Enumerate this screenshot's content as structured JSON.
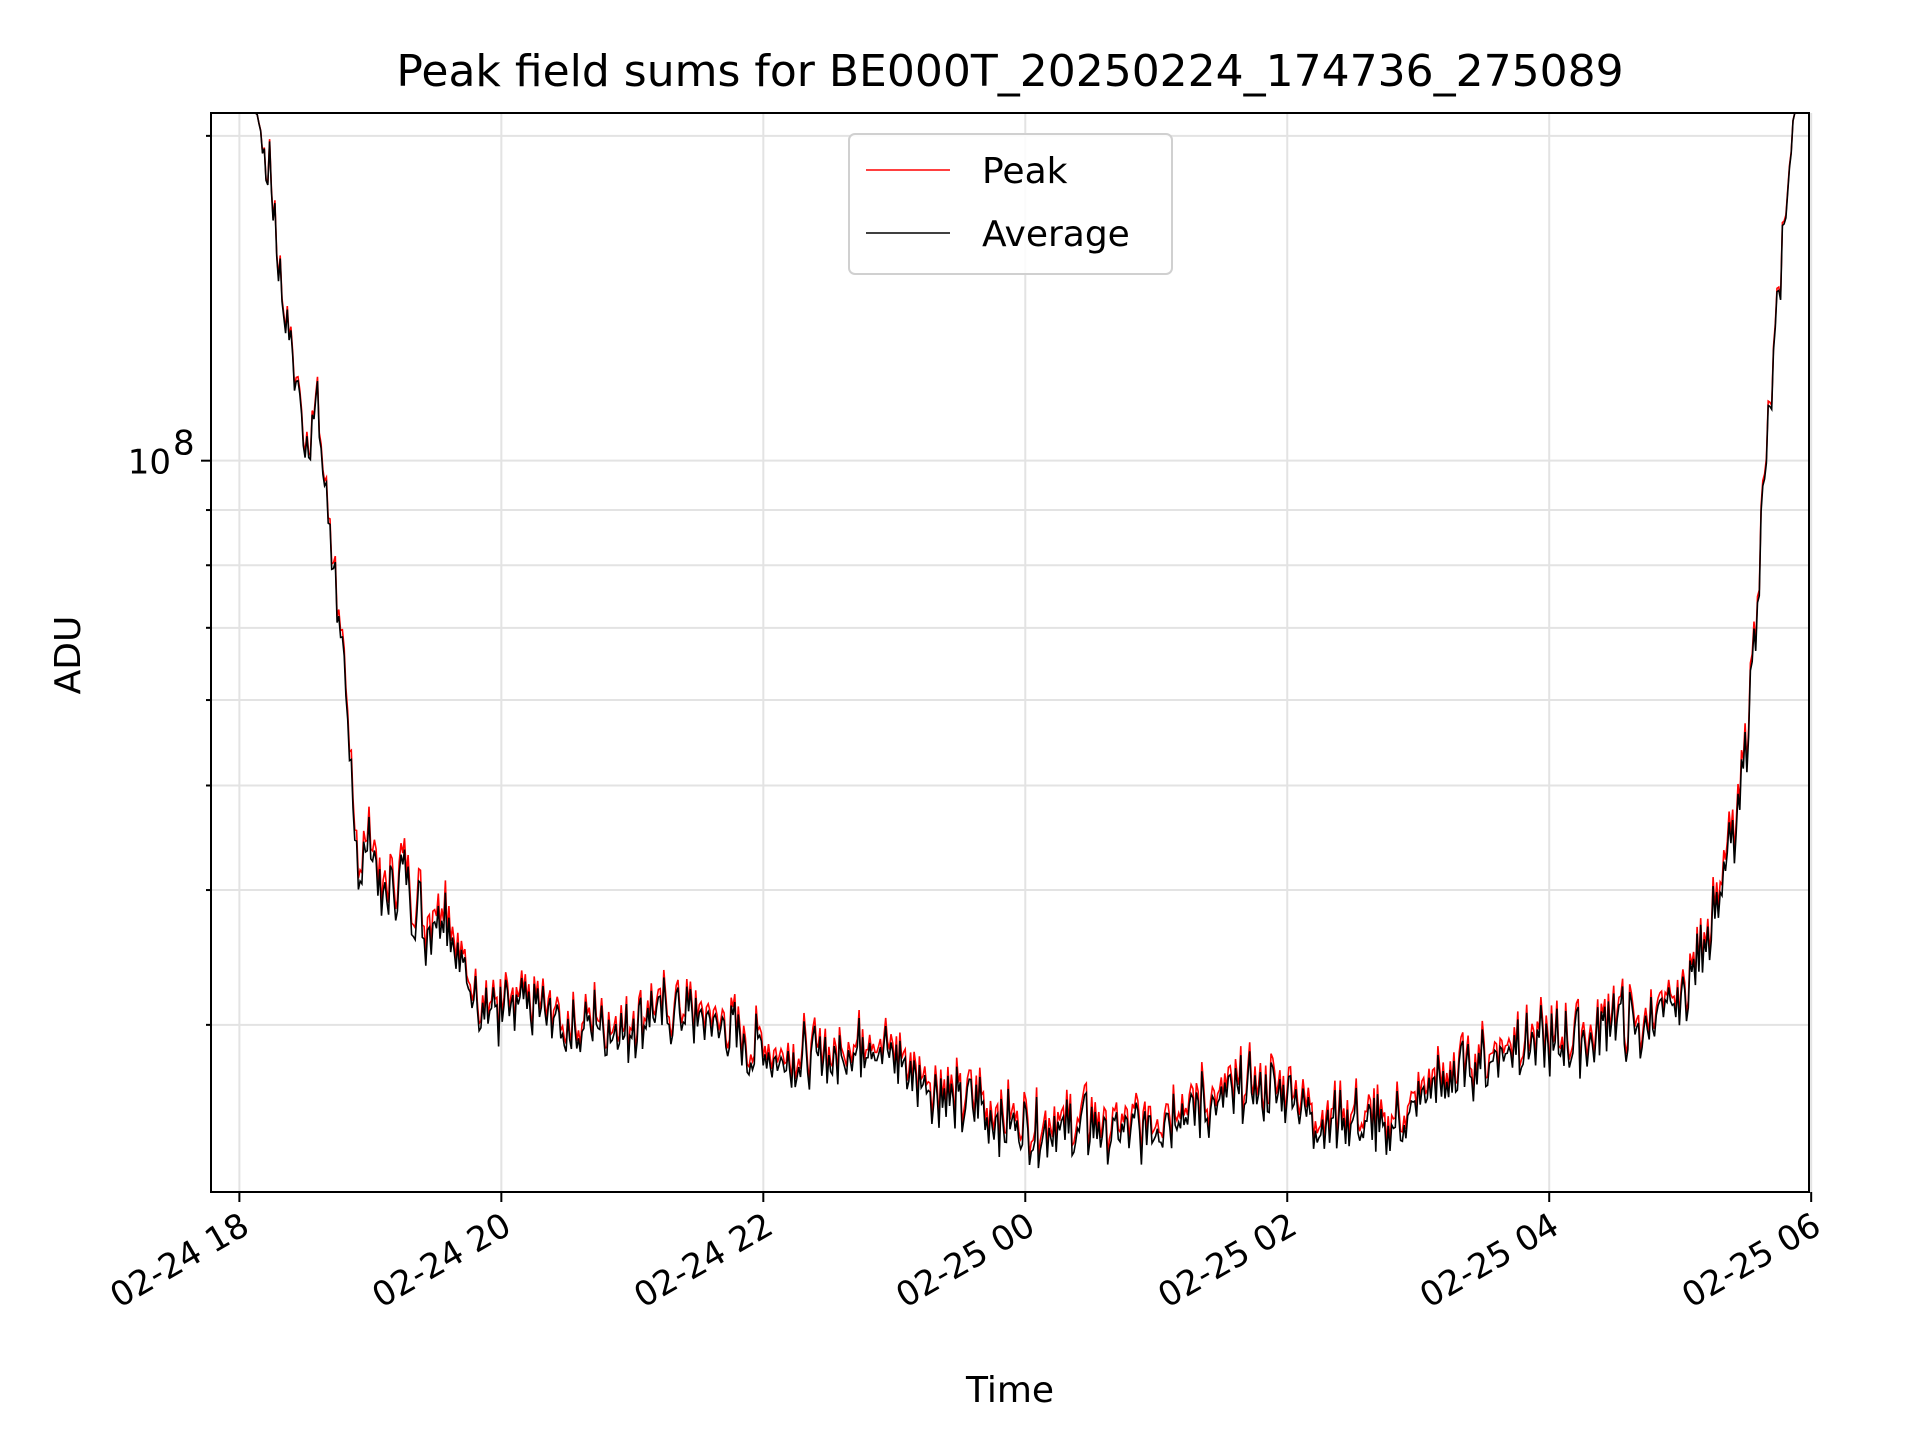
{
  "chart_data": {
    "type": "line",
    "title": "Peak field sums for BE000T_20250224_174736_275089",
    "xlabel": "Time",
    "ylabel": "ADU",
    "y_scale": "log",
    "y_tick_label": "10^8",
    "y_tick_base": "10",
    "y_tick_exponent": "8",
    "x_tick_labels": [
      "02-24 18",
      "02-24 20",
      "02-24 22",
      "02-25 00",
      "02-25 02",
      "02-25 04",
      "02-25 06"
    ],
    "x_range": [
      "2025-02-24 17:47",
      "2025-02-25 05:59"
    ],
    "ylim": [
      21000000,
      210000000
    ],
    "grid": true,
    "legend_position": "upper center",
    "series": [
      {
        "name": "Peak",
        "color": "#ff0000",
        "points": [
          [
            "2025-02-24 17:47",
            210000000
          ],
          [
            "2025-02-24 18:00",
            210000000
          ],
          [
            "2025-02-24 18:08",
            210000000
          ],
          [
            "2025-02-24 18:15",
            180000000
          ],
          [
            "2025-02-24 18:20",
            140000000
          ],
          [
            "2025-02-24 18:25",
            125000000
          ],
          [
            "2025-02-24 18:30",
            106000000
          ],
          [
            "2025-02-24 18:35",
            113000000
          ],
          [
            "2025-02-24 18:40",
            95000000
          ],
          [
            "2025-02-24 18:45",
            75000000
          ],
          [
            "2025-02-24 18:50",
            55000000
          ],
          [
            "2025-02-24 18:55",
            42000000
          ],
          [
            "2025-02-24 19:00",
            47000000
          ],
          [
            "2025-02-24 19:05",
            40000000
          ],
          [
            "2025-02-24 19:15",
            42000000
          ],
          [
            "2025-02-24 19:25",
            38000000
          ],
          [
            "2025-02-24 19:35",
            39000000
          ],
          [
            "2025-02-24 19:45",
            33000000
          ],
          [
            "2025-02-24 20:00",
            31000000
          ],
          [
            "2025-02-24 20:15",
            32000000
          ],
          [
            "2025-02-24 20:30",
            30000000
          ],
          [
            "2025-02-24 20:45",
            31000000
          ],
          [
            "2025-02-24 20:55",
            30000000
          ],
          [
            "2025-02-24 21:10",
            31500000
          ],
          [
            "2025-02-24 21:30",
            31000000
          ],
          [
            "2025-02-24 21:45",
            30000000
          ],
          [
            "2025-02-24 22:00",
            28500000
          ],
          [
            "2025-02-24 22:30",
            28500000
          ],
          [
            "2025-02-24 22:45",
            29500000
          ],
          [
            "2025-02-24 23:00",
            28500000
          ],
          [
            "2025-02-24 23:15",
            27000000
          ],
          [
            "2025-02-24 23:30",
            26000000
          ],
          [
            "2025-02-24 23:45",
            25500000
          ],
          [
            "2025-02-25 00:00",
            24500000
          ],
          [
            "2025-02-25 00:15",
            24500000
          ],
          [
            "2025-02-25 00:30",
            24500000
          ],
          [
            "2025-02-25 00:45",
            24000000
          ],
          [
            "2025-02-25 01:00",
            25000000
          ],
          [
            "2025-02-25 01:15",
            25500000
          ],
          [
            "2025-02-25 01:30",
            26000000
          ],
          [
            "2025-02-25 01:45",
            26500000
          ],
          [
            "2025-02-25 02:00",
            26500000
          ],
          [
            "2025-02-25 02:15",
            25000000
          ],
          [
            "2025-02-25 02:30",
            25000000
          ],
          [
            "2025-02-25 02:45",
            24500000
          ],
          [
            "2025-02-25 03:00",
            26000000
          ],
          [
            "2025-02-25 03:15",
            27500000
          ],
          [
            "2025-02-25 03:30",
            28000000
          ],
          [
            "2025-02-25 03:45",
            29500000
          ],
          [
            "2025-02-25 04:00",
            29000000
          ],
          [
            "2025-02-25 04:15",
            29500000
          ],
          [
            "2025-02-25 04:30",
            31000000
          ],
          [
            "2025-02-25 04:40",
            30000000
          ],
          [
            "2025-02-25 04:50",
            31500000
          ],
          [
            "2025-02-25 05:00",
            32000000
          ],
          [
            "2025-02-25 05:10",
            36000000
          ],
          [
            "2025-02-25 05:20",
            42000000
          ],
          [
            "2025-02-25 05:25",
            46000000
          ],
          [
            "2025-02-25 05:30",
            55000000
          ],
          [
            "2025-02-25 05:35",
            75000000
          ],
          [
            "2025-02-25 05:40",
            105000000
          ],
          [
            "2025-02-25 05:45",
            140000000
          ],
          [
            "2025-02-25 05:50",
            190000000
          ],
          [
            "2025-02-25 05:52",
            210000000
          ],
          [
            "2025-02-25 05:59",
            210000000
          ]
        ]
      },
      {
        "name": "Average",
        "color": "#000000",
        "points": [
          [
            "2025-02-24 17:47",
            210000000
          ],
          [
            "2025-02-24 18:00",
            210000000
          ],
          [
            "2025-02-24 18:08",
            210000000
          ],
          [
            "2025-02-24 18:15",
            179000000
          ],
          [
            "2025-02-24 18:20",
            139000000
          ],
          [
            "2025-02-24 18:25",
            124000000
          ],
          [
            "2025-02-24 18:30",
            105000000
          ],
          [
            "2025-02-24 18:35",
            112000000
          ],
          [
            "2025-02-24 18:40",
            94000000
          ],
          [
            "2025-02-24 18:45",
            74000000
          ],
          [
            "2025-02-24 18:50",
            54000000
          ],
          [
            "2025-02-24 18:55",
            41000000
          ],
          [
            "2025-02-24 19:00",
            46000000
          ],
          [
            "2025-02-24 19:05",
            39000000
          ],
          [
            "2025-02-24 19:15",
            41000000
          ],
          [
            "2025-02-24 19:25",
            37000000
          ],
          [
            "2025-02-24 19:35",
            38000000
          ],
          [
            "2025-02-24 19:45",
            32500000
          ],
          [
            "2025-02-24 20:00",
            30500000
          ],
          [
            "2025-02-24 20:15",
            31500000
          ],
          [
            "2025-02-24 20:30",
            29500000
          ],
          [
            "2025-02-24 20:45",
            30500000
          ],
          [
            "2025-02-24 20:55",
            29500000
          ],
          [
            "2025-02-24 21:10",
            31000000
          ],
          [
            "2025-02-24 21:30",
            30500000
          ],
          [
            "2025-02-24 21:45",
            29500000
          ],
          [
            "2025-02-24 22:00",
            28000000
          ],
          [
            "2025-02-24 22:30",
            28000000
          ],
          [
            "2025-02-24 22:45",
            29000000
          ],
          [
            "2025-02-24 23:00",
            28000000
          ],
          [
            "2025-02-24 23:15",
            26500000
          ],
          [
            "2025-02-24 23:30",
            25500000
          ],
          [
            "2025-02-24 23:45",
            25000000
          ],
          [
            "2025-02-25 00:00",
            24000000
          ],
          [
            "2025-02-25 00:15",
            24000000
          ],
          [
            "2025-02-25 00:30",
            24000000
          ],
          [
            "2025-02-25 00:45",
            23500000
          ],
          [
            "2025-02-25 01:00",
            24500000
          ],
          [
            "2025-02-25 01:15",
            25000000
          ],
          [
            "2025-02-25 01:30",
            25500000
          ],
          [
            "2025-02-25 01:45",
            26000000
          ],
          [
            "2025-02-25 02:00",
            26000000
          ],
          [
            "2025-02-25 02:15",
            24500000
          ],
          [
            "2025-02-25 02:30",
            24500000
          ],
          [
            "2025-02-25 02:45",
            24000000
          ],
          [
            "2025-02-25 03:00",
            25500000
          ],
          [
            "2025-02-25 03:15",
            27000000
          ],
          [
            "2025-02-25 03:30",
            27500000
          ],
          [
            "2025-02-25 03:45",
            29000000
          ],
          [
            "2025-02-25 04:00",
            28500000
          ],
          [
            "2025-02-25 04:15",
            29000000
          ],
          [
            "2025-02-25 04:30",
            30500000
          ],
          [
            "2025-02-25 04:40",
            29500000
          ],
          [
            "2025-02-25 04:50",
            31000000
          ],
          [
            "2025-02-25 05:00",
            31500000
          ],
          [
            "2025-02-25 05:10",
            35500000
          ],
          [
            "2025-02-25 05:20",
            41000000
          ],
          [
            "2025-02-25 05:25",
            45000000
          ],
          [
            "2025-02-25 05:30",
            54000000
          ],
          [
            "2025-02-25 05:35",
            74000000
          ],
          [
            "2025-02-25 05:40",
            104000000
          ],
          [
            "2025-02-25 05:45",
            139000000
          ],
          [
            "2025-02-25 05:50",
            189000000
          ],
          [
            "2025-02-25 05:52",
            210000000
          ],
          [
            "2025-02-25 05:59",
            210000000
          ]
        ]
      }
    ]
  }
}
